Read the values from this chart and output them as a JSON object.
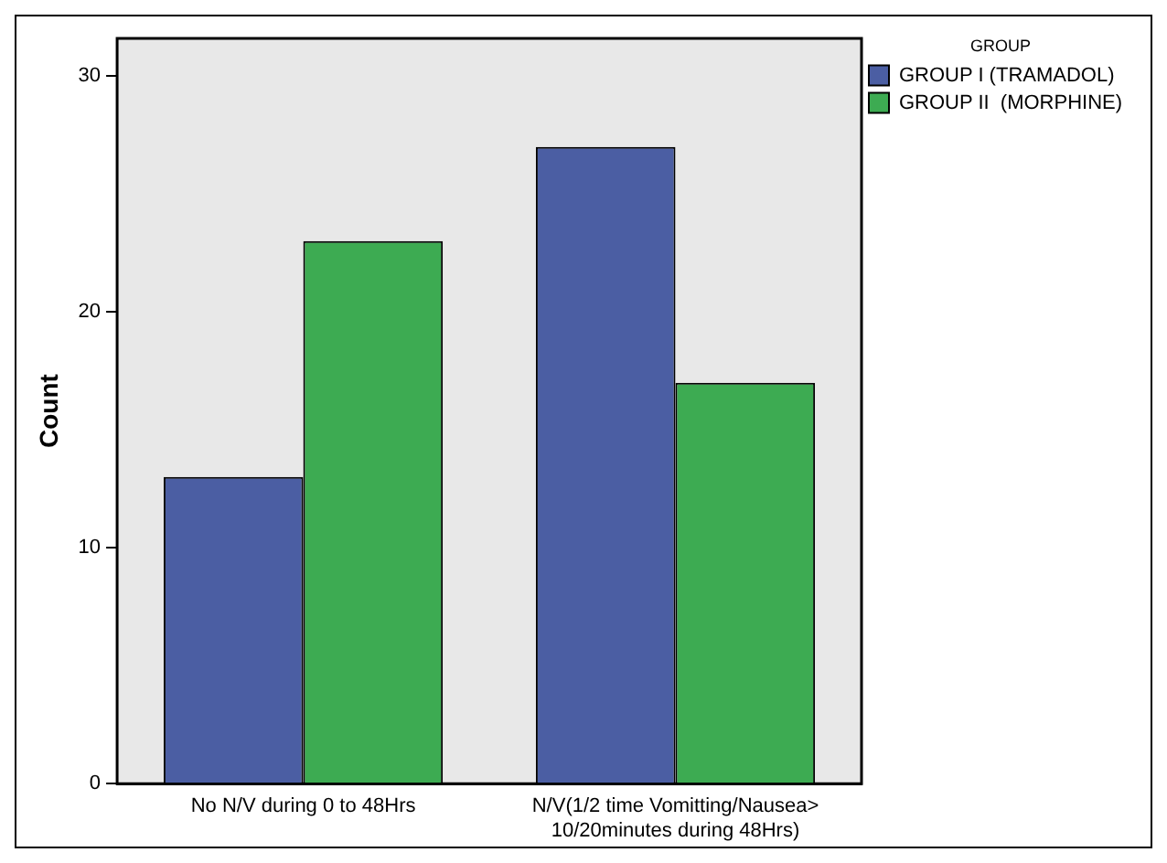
{
  "chart_data": {
    "type": "bar",
    "ylabel": "Count",
    "legend_title": "GROUP",
    "legend": "top right",
    "categories": [
      "No N/V during 0 to 48Hrs",
      "N/V(1/2 time Vomitting/Nausea> 10/20minutes during 48Hrs)"
    ],
    "series": [
      {
        "name": "GROUP I (TRAMADOL)",
        "color": "#4b5ea3",
        "values": [
          13,
          27
        ]
      },
      {
        "name": "GROUP II  (MORPHINE)",
        "color": "#3dab52",
        "values": [
          23,
          17
        ]
      }
    ],
    "ylim": [
      0,
      31.6
    ],
    "yticks": [
      0,
      10,
      20,
      30
    ],
    "grid": false
  }
}
